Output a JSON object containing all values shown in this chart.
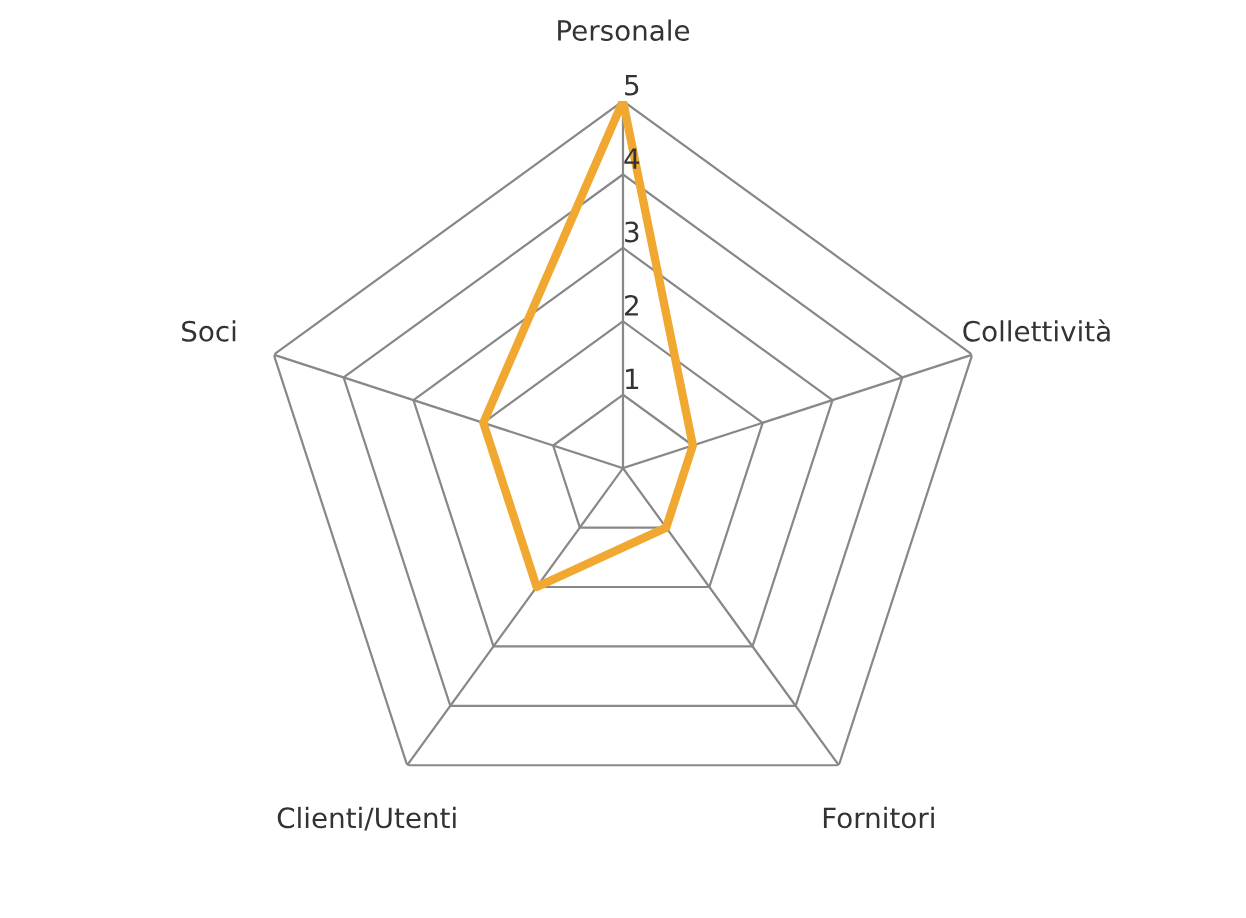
{
  "chart_data": {
    "type": "radar",
    "categories": [
      "Personale",
      "Collettività",
      "Fornitori",
      "Clienti/Utenti",
      "Soci"
    ],
    "series": [
      {
        "color": "#f0a830",
        "values": [
          5,
          1,
          1,
          2,
          2
        ]
      }
    ],
    "ylim": [
      0,
      5
    ],
    "yticks": [
      1,
      2,
      3,
      4,
      5
    ],
    "grid": true,
    "marker": "none",
    "line_style": "solid"
  }
}
